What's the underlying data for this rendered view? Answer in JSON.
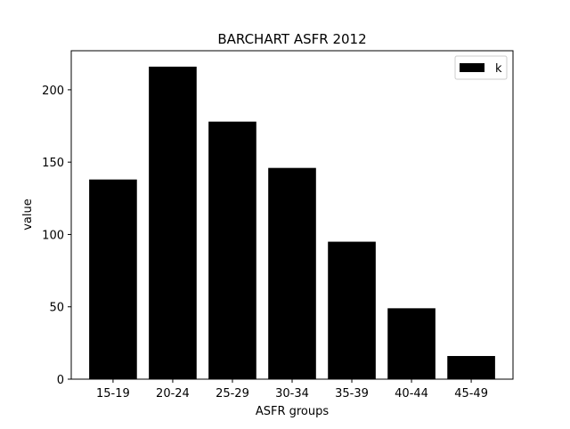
{
  "chart_data": {
    "type": "bar",
    "title": "BARCHART ASFR 2012",
    "xlabel": "ASFR groups",
    "ylabel": "value",
    "categories": [
      "15-19",
      "20-24",
      "25-29",
      "30-34",
      "35-39",
      "40-44",
      "45-49"
    ],
    "series": [
      {
        "name": "k",
        "values": [
          138,
          216,
          178,
          146,
          95,
          49,
          16
        ],
        "color": "#000000"
      }
    ],
    "ylim": [
      0,
      227
    ],
    "yticks": [
      0,
      50,
      100,
      150,
      200
    ],
    "grid": false,
    "legend_position": "top-right"
  }
}
